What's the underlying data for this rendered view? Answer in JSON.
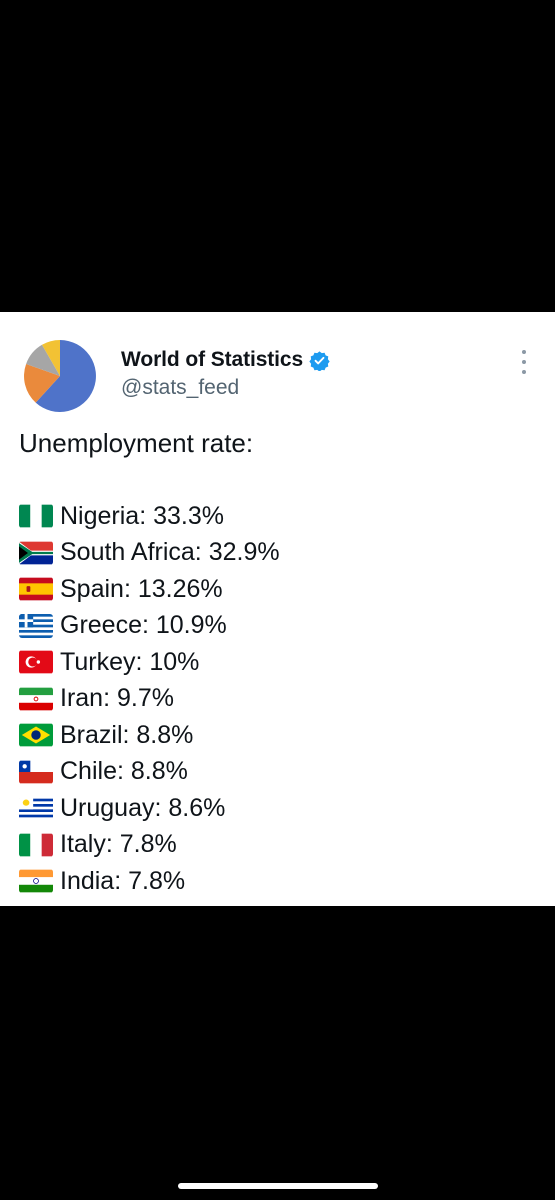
{
  "account": {
    "name": "World of Statistics",
    "handle": "@stats_feed",
    "verified": true,
    "avatar_icon": "pie-chart-avatar"
  },
  "tweet": {
    "title": "Unemployment rate:",
    "items": [
      {
        "flag": "nigeria-flag-icon",
        "text": "Nigeria: 33.3%"
      },
      {
        "flag": "south-africa-flag-icon",
        "text": "South Africa: 32.9%"
      },
      {
        "flag": "spain-flag-icon",
        "text": "Spain: 13.26%"
      },
      {
        "flag": "greece-flag-icon",
        "text": "Greece: 10.9%"
      },
      {
        "flag": "turkey-flag-icon",
        "text": "Turkey: 10%"
      },
      {
        "flag": "iran-flag-icon",
        "text": "Iran: 9.7%"
      },
      {
        "flag": "brazil-flag-icon",
        "text": "Brazil: 8.8%"
      },
      {
        "flag": "chile-flag-icon",
        "text": "Chile: 8.8%"
      },
      {
        "flag": "uruguay-flag-icon",
        "text": "Uruguay: 8.6%"
      },
      {
        "flag": "italy-flag-icon",
        "text": "Italy: 7.8%"
      },
      {
        "flag": "india-flag-icon",
        "text": "India: 7.8%"
      }
    ]
  },
  "colors": {
    "verified_blue": "#1d9bf0",
    "handle_gray": "#536471",
    "text": "#0f1419"
  }
}
